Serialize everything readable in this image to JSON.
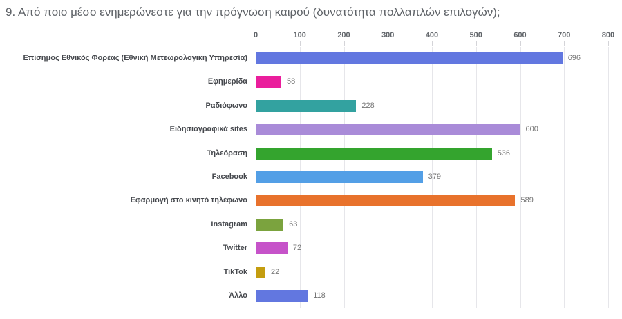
{
  "chart_data": {
    "type": "bar",
    "orientation": "horizontal",
    "title": "9. Από ποιο μέσο ενημερώνεστε για την πρόγνωση καιρού (δυνατότητα πολλαπλών επιλογών);",
    "categories": [
      "Επίσημος Εθνικός Φορέας (Εθνική Μετεωρολογική Υπηρεσία)",
      "Εφημερίδα",
      "Ραδιόφωνο",
      "Ειδησιογραφικά sites",
      "Τηλεόραση",
      "Facebook",
      "Εφαρμογή στο κινητό τηλέφωνο",
      "Instagram",
      "Twitter",
      "TikTok",
      "Άλλο"
    ],
    "values": [
      696,
      58,
      228,
      600,
      536,
      379,
      589,
      63,
      72,
      22,
      118
    ],
    "bar_colors": [
      "#6277e0",
      "#ea1e9c",
      "#33a2a0",
      "#a98bd8",
      "#34a42e",
      "#539fe6",
      "#e8722c",
      "#7ba33e",
      "#c653c9",
      "#c49d0f",
      "#6277e0"
    ],
    "xlabel": "",
    "ylabel": "",
    "xlim": [
      0,
      800
    ],
    "xticks": [
      0,
      100,
      200,
      300,
      400,
      500,
      600,
      700,
      800
    ],
    "grid": true,
    "legend": false,
    "value_labels": true
  }
}
